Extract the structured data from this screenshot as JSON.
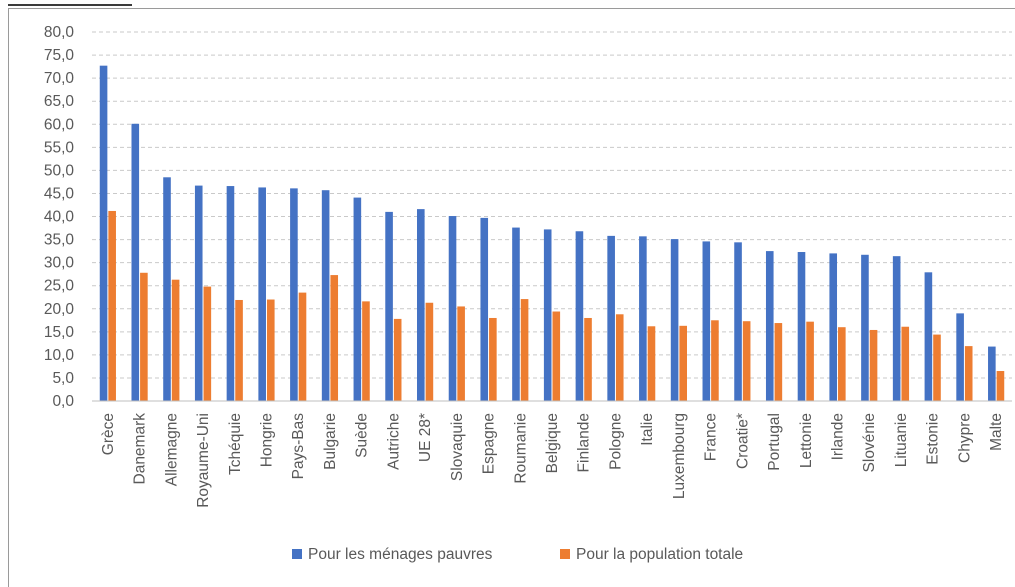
{
  "chart_data": {
    "type": "bar",
    "title": "",
    "xlabel": "",
    "ylabel": "",
    "ylim": [
      0,
      80
    ],
    "ytick_step": 5,
    "ytick_labels": [
      "0,0",
      "5,0",
      "10,0",
      "15,0",
      "20,0",
      "25,0",
      "30,0",
      "35,0",
      "40,0",
      "45,0",
      "50,0",
      "55,0",
      "60,0",
      "65,0",
      "70,0",
      "75,0",
      "80,0"
    ],
    "grid": true,
    "legend_position": "bottom",
    "categories": [
      "Grèce",
      "Danemark",
      "Allemagne",
      "Royaume-Uni",
      "Tchéquie",
      "Hongrie",
      "Pays-Bas",
      "Bulgarie",
      "Suède",
      "Autriche",
      "UE 28*",
      "Slovaquie",
      "Espagne",
      "Roumanie",
      "Belgique",
      "Finlande",
      "Pologne",
      "Italie",
      "Luxembourg",
      "France",
      "Croatie*",
      "Portugal",
      "Lettonie",
      "Irlande",
      "Slovénie",
      "Lituanie",
      "Estonie",
      "Chypre",
      "Malte"
    ],
    "series": [
      {
        "name": "Pour les ménages pauvres",
        "color": "#4472c4",
        "values": [
          72.7,
          60.1,
          48.5,
          46.7,
          46.6,
          46.3,
          46.1,
          45.7,
          44.1,
          41.0,
          41.6,
          40.1,
          39.7,
          37.6,
          37.2,
          36.8,
          35.8,
          35.7,
          35.1,
          34.6,
          34.4,
          32.5,
          32.3,
          32.0,
          31.7,
          31.4,
          27.9,
          19.0,
          11.8
        ]
      },
      {
        "name": "Pour la population totale",
        "color": "#ed7d31",
        "values": [
          41.2,
          27.8,
          26.3,
          24.8,
          21.9,
          22.0,
          23.5,
          27.3,
          21.6,
          17.8,
          21.3,
          20.5,
          18.0,
          22.1,
          19.4,
          18.0,
          18.8,
          16.2,
          16.3,
          17.5,
          17.3,
          16.9,
          17.2,
          16.0,
          15.4,
          16.1,
          14.4,
          11.9,
          6.5
        ]
      }
    ]
  }
}
